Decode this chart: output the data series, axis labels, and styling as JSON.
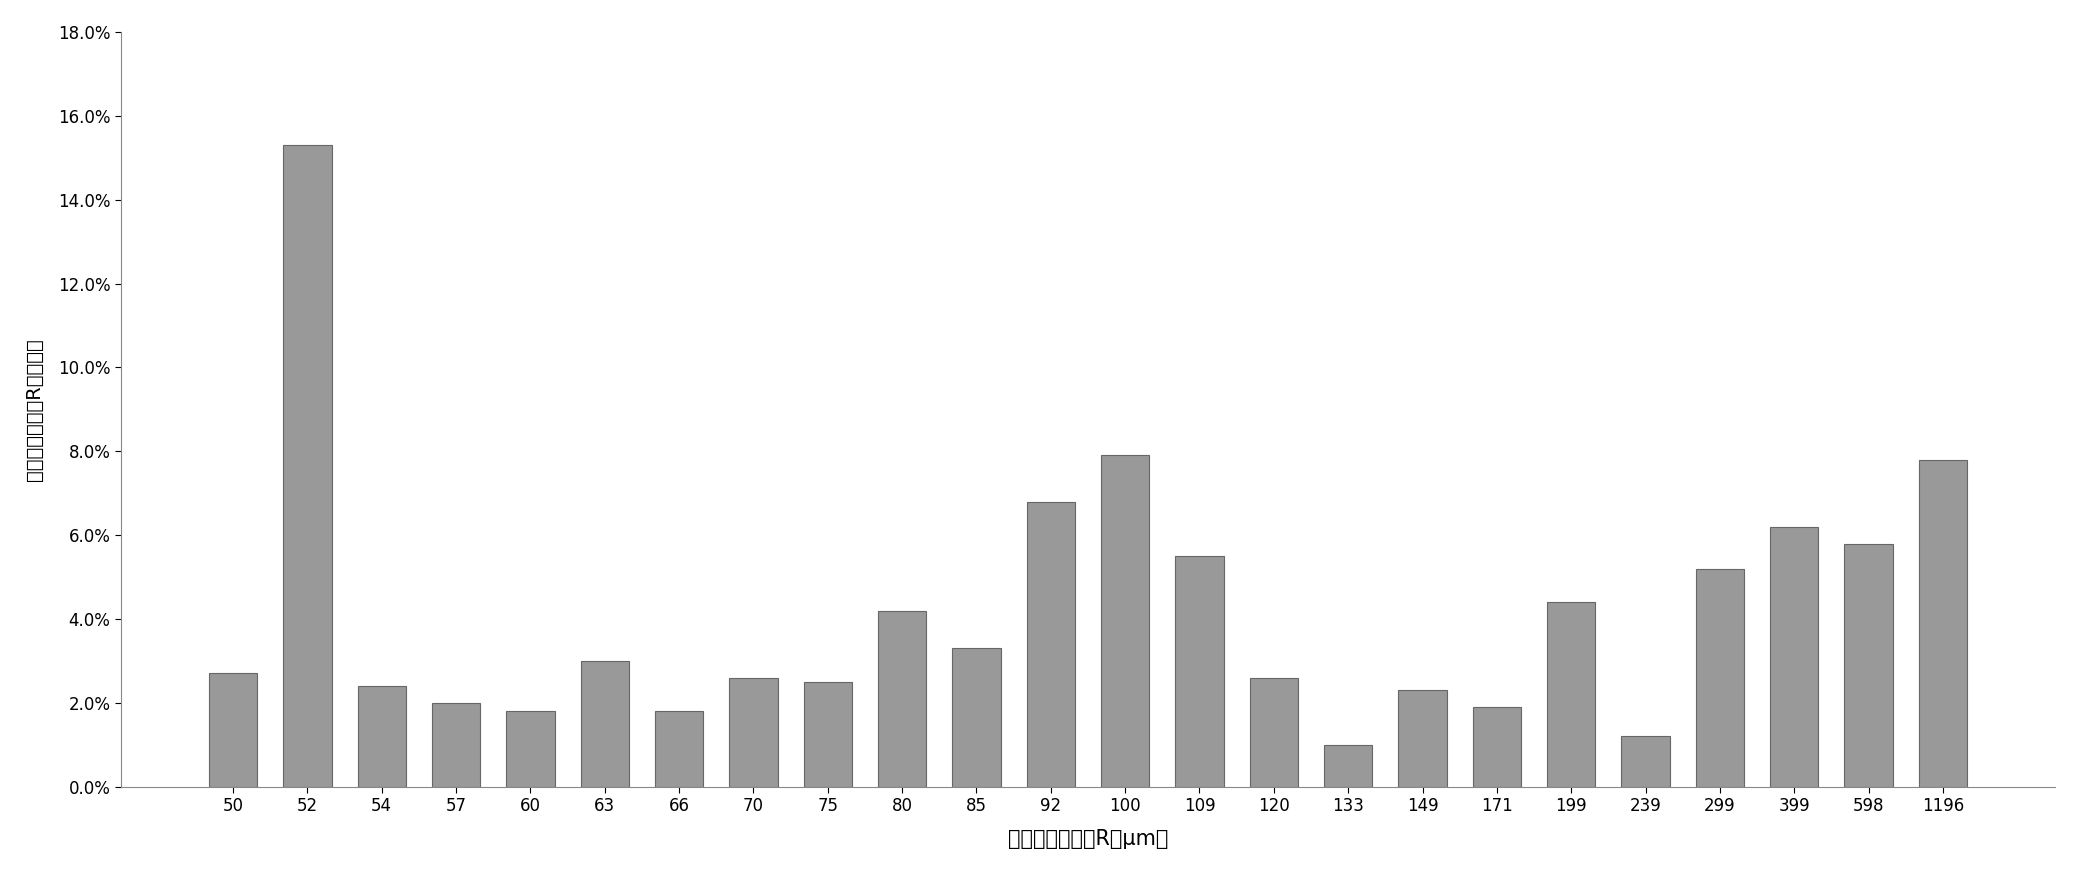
{
  "categories": [
    "50",
    "52",
    "54",
    "57",
    "60",
    "63",
    "66",
    "70",
    "75",
    "80",
    "85",
    "92",
    "100",
    "109",
    "120",
    "133",
    "149",
    "171",
    "199",
    "239",
    "299",
    "399",
    "598",
    "1196"
  ],
  "values": [
    0.027,
    0.153,
    0.024,
    0.02,
    0.018,
    0.03,
    0.018,
    0.026,
    0.025,
    0.042,
    0.033,
    0.068,
    0.079,
    0.055,
    0.026,
    0.01,
    0.023,
    0.019,
    0.044,
    0.012,
    0.052,
    0.062,
    0.058,
    0.078
  ],
  "bar_color": "#999999",
  "xlabel": "对应的毛细孔径R（μm）",
  "ylabel": "对应的毛细孔径R占的比率",
  "ylim_min": 0.0,
  "ylim_max": 0.18,
  "ytick_step": 0.02,
  "background_color": "#ffffff",
  "fig_width": 20.8,
  "fig_height": 8.74,
  "bar_edge_color": "#666666",
  "bar_linewidth": 0.8,
  "xlabel_fontsize": 15,
  "ylabel_fontsize": 14,
  "tick_fontsize": 12
}
